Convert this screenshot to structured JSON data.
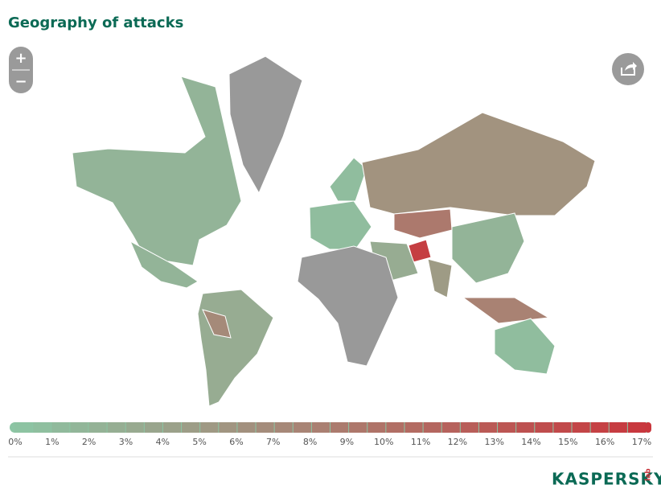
{
  "title": "Geography of attacks",
  "controls": {
    "zoom_in": "+",
    "zoom_out": "−"
  },
  "map": {
    "values": [
      2,
      2,
      null,
      3,
      7,
      1,
      1,
      6,
      9,
      16,
      2,
      3,
      5,
      null,
      8,
      1
    ],
    "scale_colors": [
      "#8cc5a4",
      "#c9363c"
    ],
    "no_data_color": "#999999",
    "ticks": [
      {
        "value": 0,
        "label": "0%"
      },
      {
        "value": 1,
        "label": "1%"
      },
      {
        "value": 2,
        "label": "2%"
      },
      {
        "value": 3,
        "label": "3%"
      },
      {
        "value": 4,
        "label": "4%"
      },
      {
        "value": 5,
        "label": "5%"
      },
      {
        "value": 6,
        "label": "6%"
      },
      {
        "value": 7,
        "label": "7%"
      },
      {
        "value": 8,
        "label": "8%"
      },
      {
        "value": 9,
        "label": "9%"
      },
      {
        "value": 10,
        "label": "10%"
      },
      {
        "value": 11,
        "label": "11%"
      },
      {
        "value": 12,
        "label": "12%"
      },
      {
        "value": 13,
        "label": "13%"
      },
      {
        "value": 14,
        "label": "14%"
      },
      {
        "value": 15,
        "label": "15%"
      },
      {
        "value": 16,
        "label": "16%"
      },
      {
        "value": 17,
        "label": "17%"
      }
    ]
  },
  "logo": {
    "name": "KASPERSKY",
    "suffix": "lab"
  }
}
